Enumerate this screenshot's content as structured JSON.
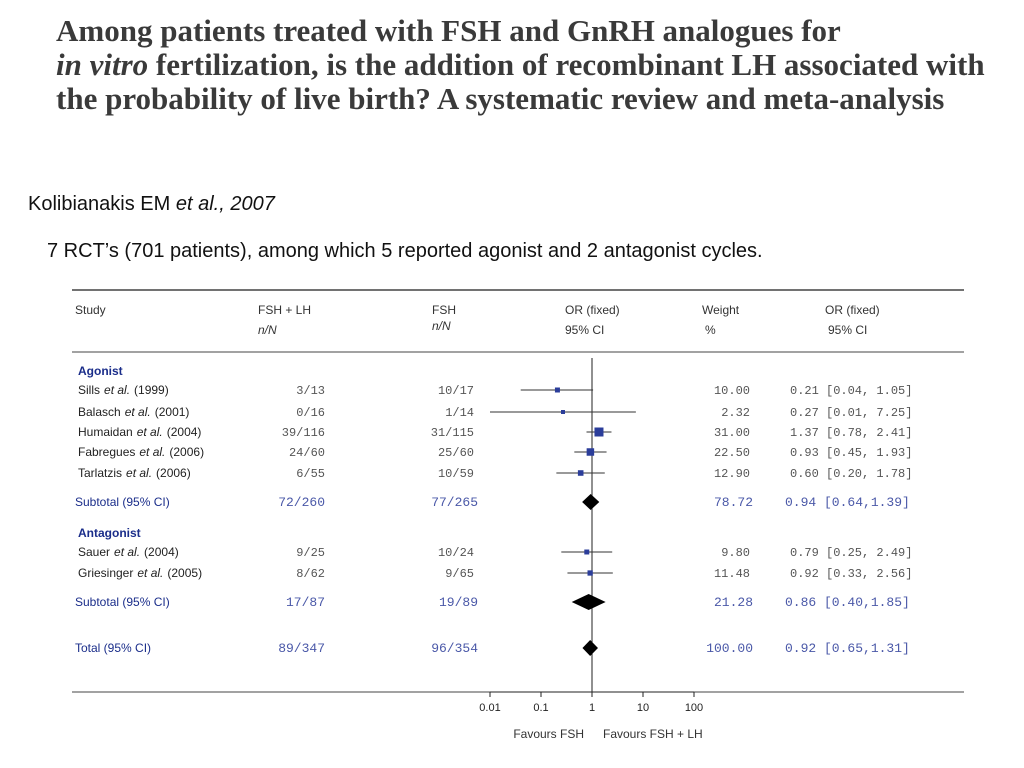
{
  "title": {
    "part1": "Among patients treated with FSH and GnRH analogues for",
    "italic": "in vitro",
    "part2": "fertilization, is the addition of recombinant LH associated with the probability of live birth? A systematic review and meta-analysis"
  },
  "citation": {
    "author": "Kolibianakis EM",
    "etal": "et al., 2007"
  },
  "summary": "7 RCT’s (701 patients), among which 5 reported agonist and 2 antagonist cycles.",
  "table_headers": {
    "study": "Study",
    "fsh_lh": "FSH + LH",
    "fsh_lh_sub": "n/N",
    "fsh": "FSH",
    "fsh_sub": "n/N",
    "or_fixed": "OR (fixed)",
    "or_fixed_sub": "95% CI",
    "weight": "Weight",
    "weight_sub": "%",
    "or_fixed2": "OR (fixed)",
    "or_fixed2_sub": "95% CI"
  },
  "chart_data": {
    "type": "forest",
    "xscale": "log",
    "xlim": [
      0.01,
      100
    ],
    "x_ticks": [
      "0.01",
      "0.1",
      "1",
      "10",
      "100"
    ],
    "x_tick_values": [
      0.01,
      0.1,
      1,
      10,
      100
    ],
    "favours_left": "Favours FSH",
    "favours_right": "Favours FSH + LH",
    "groups": [
      {
        "label": "Agonist",
        "studies": [
          {
            "name": "Sills",
            "etal": "et al.",
            "year": "(1999)",
            "fsh_lh": "3/13",
            "fsh": "10/17",
            "weight": "10.00",
            "ci_text": "0.21 [0.04, 1.05]",
            "or": 0.21,
            "lo": 0.04,
            "hi": 1.05
          },
          {
            "name": "Balasch",
            "etal": "et al.",
            "year": "(2001)",
            "fsh_lh": "0/16",
            "fsh": "1/14",
            "weight": "2.32",
            "ci_text": "0.27 [0.01, 7.25]",
            "or": 0.27,
            "lo": 0.01,
            "hi": 7.25
          },
          {
            "name": "Humaidan",
            "etal": "et al.",
            "year": "(2004)",
            "fsh_lh": "39/116",
            "fsh": "31/115",
            "weight": "31.00",
            "ci_text": "1.37 [0.78, 2.41]",
            "or": 1.37,
            "lo": 0.78,
            "hi": 2.41
          },
          {
            "name": "Fabregues",
            "etal": "et al.",
            "year": "(2006)",
            "fsh_lh": "24/60",
            "fsh": "25/60",
            "weight": "22.50",
            "ci_text": "0.93 [0.45, 1.93]",
            "or": 0.93,
            "lo": 0.45,
            "hi": 1.93
          },
          {
            "name": "Tarlatzis",
            "etal": "et al.",
            "year": "(2006)",
            "fsh_lh": "6/55",
            "fsh": "10/59",
            "weight": "12.90",
            "ci_text": "0.60 [0.20, 1.78]",
            "or": 0.6,
            "lo": 0.2,
            "hi": 1.78
          }
        ],
        "subtotal": {
          "label": "Subtotal (95% CI)",
          "fsh_lh": "72/260",
          "fsh": "77/265",
          "weight": "78.72",
          "ci_text": "0.94 [0.64,1.39]",
          "or": 0.94,
          "lo": 0.64,
          "hi": 1.39
        }
      },
      {
        "label": "Antagonist",
        "studies": [
          {
            "name": "Sauer",
            "etal": "et al.",
            "year": "(2004)",
            "fsh_lh": "9/25",
            "fsh": "10/24",
            "weight": "9.80",
            "ci_text": "0.79 [0.25, 2.49]",
            "or": 0.79,
            "lo": 0.25,
            "hi": 2.49
          },
          {
            "name": "Griesinger",
            "etal": "et al.",
            "year": "(2005)",
            "fsh_lh": "8/62",
            "fsh": "9/65",
            "weight": "11.48",
            "ci_text": "0.92 [0.33, 2.56]",
            "or": 0.92,
            "lo": 0.33,
            "hi": 2.56
          }
        ],
        "subtotal": {
          "label": "Subtotal (95% CI)",
          "fsh_lh": "17/87",
          "fsh": "19/89",
          "weight": "21.28",
          "ci_text": "0.86 [0.40,1.85]",
          "or": 0.86,
          "lo": 0.4,
          "hi": 1.85
        }
      }
    ],
    "total": {
      "label": "Total (95% CI)",
      "fsh_lh": "89/347",
      "fsh": "96/354",
      "weight": "100.00",
      "ci_text": "0.92 [0.65,1.31]",
      "or": 0.92,
      "lo": 0.65,
      "hi": 1.31
    }
  }
}
